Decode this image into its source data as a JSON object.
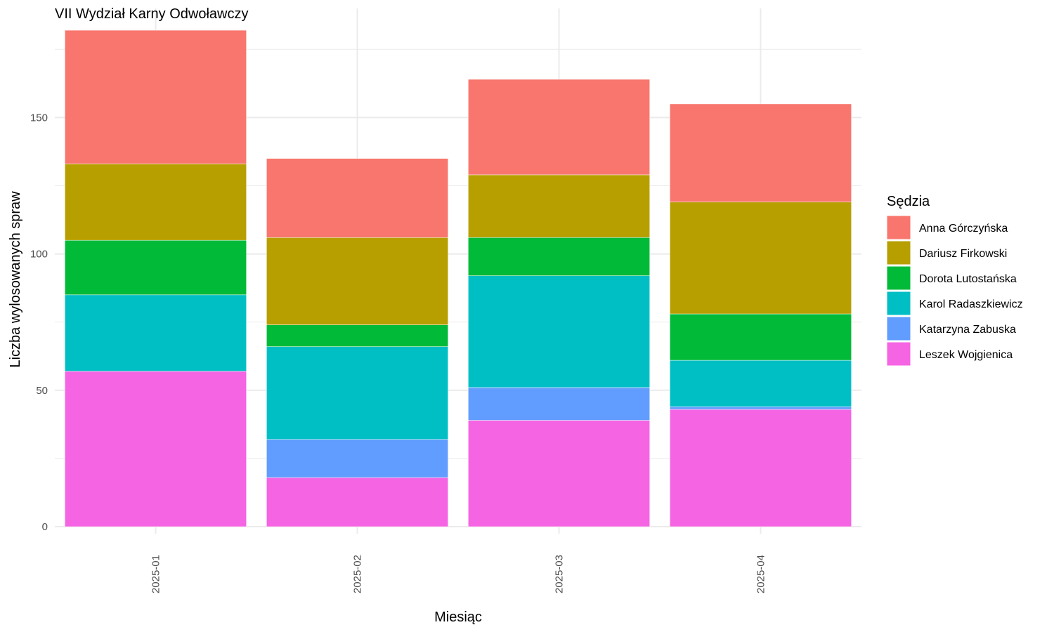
{
  "chart_data": {
    "type": "bar",
    "stacked": true,
    "title": "VII Wydział Karny Odwoławczy",
    "xlabel": "Miesiąc",
    "ylabel": "Liczba wylosowanych spraw",
    "categories": [
      "2025-01",
      "2025-02",
      "2025-03",
      "2025-04"
    ],
    "ylim": [
      0,
      190
    ],
    "yticks": [
      0,
      50,
      100,
      150
    ],
    "grid": true,
    "legend": {
      "title": "Sędzia",
      "position": "right"
    },
    "series": [
      {
        "name": "Leszek Wojgienica",
        "color": "#F564E3",
        "values": [
          57,
          18,
          39,
          43
        ]
      },
      {
        "name": "Katarzyna Zabuska",
        "color": "#619CFF",
        "values": [
          0,
          14,
          12,
          1
        ]
      },
      {
        "name": "Karol Radaszkiewicz",
        "color": "#00BFC4",
        "values": [
          28,
          34,
          41,
          17
        ]
      },
      {
        "name": "Dorota Lutostańska",
        "color": "#00BA38",
        "values": [
          20,
          8,
          14,
          17
        ]
      },
      {
        "name": "Dariusz Firkowski",
        "color": "#B79F00",
        "values": [
          28,
          32,
          23,
          41
        ]
      },
      {
        "name": "Anna Górczyńska",
        "color": "#F8766D",
        "values": [
          49,
          29,
          35,
          36
        ]
      }
    ],
    "legend_order": [
      "Anna Górczyńska",
      "Dariusz Firkowski",
      "Dorota Lutostańska",
      "Karol Radaszkiewicz",
      "Katarzyna Zabuska",
      "Leszek Wojgienica"
    ]
  }
}
